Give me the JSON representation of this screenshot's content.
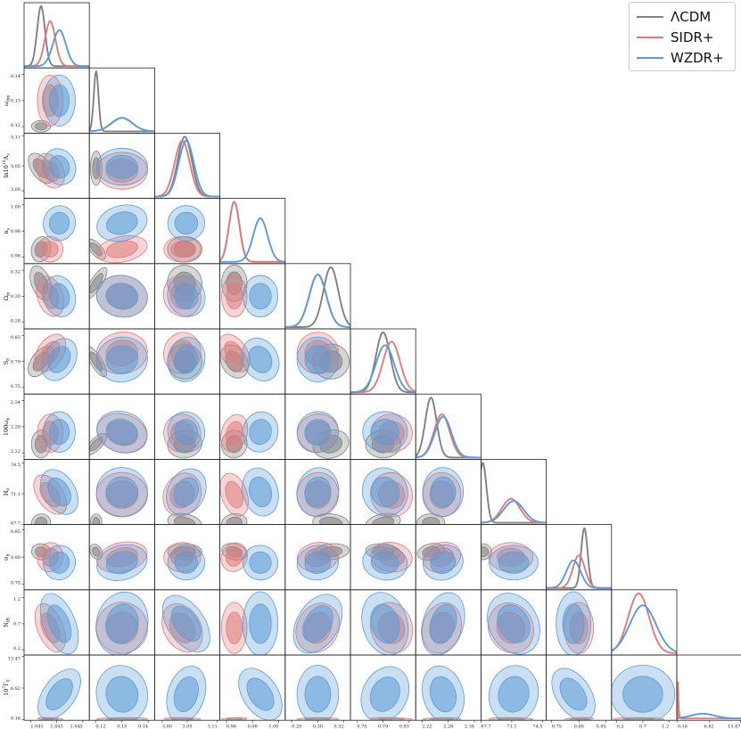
{
  "chart_data": {
    "type": "corner",
    "parameters": [
      {
        "label": "100θs",
        "ticks": [
          "1.041",
          "1.043",
          "1.045"
        ],
        "range": [
          1.0405,
          1.0455
        ],
        "lab_html": "100θ<tspan font-size='4.5' dy='1.5'>s</tspan>"
      },
      {
        "label": "ωdm",
        "ticks": [
          "0.12",
          "0.13",
          "0.14"
        ],
        "range": [
          0.1175,
          0.1425
        ],
        "lab_html": "ω<tspan font-size='4.5' dy='1.5'>dm</tspan>"
      },
      {
        "label": "ln10^10As",
        "ticks": [
          "3.00",
          "3.05",
          "3.11"
        ],
        "range": [
          2.985,
          3.115
        ],
        "lab_html": "ln10<tspan font-size='4.5' dy='-3'>10</tspan><tspan dy='3'>A</tspan><tspan font-size='4.5' dy='1.5'>s</tspan>"
      },
      {
        "label": "ns",
        "ticks": [
          "0.96",
          "0.98",
          "1.00"
        ],
        "range": [
          0.955,
          1.005
        ],
        "lab_html": "n<tspan font-size='4.5' dy='1.5'>s</tspan>"
      },
      {
        "label": "Ωm",
        "ticks": [
          "0.28",
          "0.30",
          "0.32"
        ],
        "range": [
          0.275,
          0.325
        ],
        "lab_html": "Ω<tspan font-size='4.5' dy='1.5'>m</tspan>"
      },
      {
        "label": "S8",
        "ticks": [
          "0.75",
          "0.79",
          "0.83"
        ],
        "range": [
          0.74,
          0.84
        ],
        "lab_html": "S<tspan font-size='4.5' dy='1.5'>8</tspan>"
      },
      {
        "label": "100ωb",
        "ticks": [
          "2.22",
          "2.28",
          "2.34"
        ],
        "range": [
          2.205,
          2.355
        ],
        "lab_html": "100ω<tspan font-size='4.5' dy='1.5'>b</tspan>"
      },
      {
        "label": "H0",
        "ticks": [
          "67.7",
          "71.1",
          "74.5"
        ],
        "range": [
          67.7,
          74.9
        ],
        "lab_html": "H<tspan font-size='4.5' dy='1.5'>0</tspan>"
      },
      {
        "label": "σ8",
        "ticks": [
          "0.75",
          "0.80",
          "0.85"
        ],
        "range": [
          0.74,
          0.86
        ],
        "lab_html": "σ<tspan font-size='4.5' dy='1.5'>8</tspan>"
      },
      {
        "label": "NIR",
        "ticks": [
          "0.2",
          "0.7",
          "1.2"
        ],
        "range": [
          0.1,
          1.35
        ],
        "lab_html": "N<tspan font-size='4.5' dy='1.5'>IR</tspan>"
      },
      {
        "label": "10^7Γ0",
        "ticks": [
          "0.16",
          "6.82",
          "13.47"
        ],
        "range": [
          0,
          13.8
        ],
        "lab_html": "10<tspan font-size='4.5' dy='-3'>7</tspan><tspan dy='3'>Γ</tspan><tspan font-size='4.5' dy='1.5'>0</tspan>"
      }
    ],
    "series": [
      {
        "name": "ΛCDM",
        "color": "#808080",
        "mean": [
          1.0418,
          0.1201,
          3.045,
          0.966,
          0.31,
          0.79,
          2.24,
          67.9,
          0.81,
          null,
          null
        ],
        "sd": [
          0.0003,
          0.0009,
          0.014,
          0.004,
          0.0057,
          0.011,
          0.013,
          0.4,
          0.006,
          null,
          null
        ]
      },
      {
        "name": "SIDR+",
        "color": "#e07b7b",
        "mean": [
          1.0425,
          0.13,
          3.04,
          0.966,
          0.3,
          0.803,
          2.265,
          71.0,
          0.8,
          0.62,
          0.2
        ],
        "sd": [
          0.0004,
          0.004,
          0.015,
          0.004,
          0.0065,
          0.013,
          0.018,
          1.0,
          0.011,
          0.2,
          0.2
        ]
      },
      {
        "name": "WZDR+",
        "color": "#5b9bd5",
        "mean": [
          1.0432,
          0.13,
          3.048,
          0.986,
          0.3,
          0.793,
          2.268,
          71.3,
          0.79,
          0.7,
          5.5
        ],
        "sd": [
          0.0005,
          0.004,
          0.015,
          0.0055,
          0.0065,
          0.014,
          0.019,
          1.1,
          0.013,
          0.25,
          2.5
        ]
      }
    ],
    "legend": {
      "position": "top-right",
      "entries": [
        "ΛCDM",
        "SIDR+",
        "WZDR+"
      ]
    }
  },
  "legend": {
    "items": [
      {
        "label": "ΛCDM",
        "color": "#808080"
      },
      {
        "label": "SIDR+",
        "color": "#e07b7b"
      },
      {
        "label": "WZDR+",
        "color": "#5b9bd5"
      }
    ]
  }
}
